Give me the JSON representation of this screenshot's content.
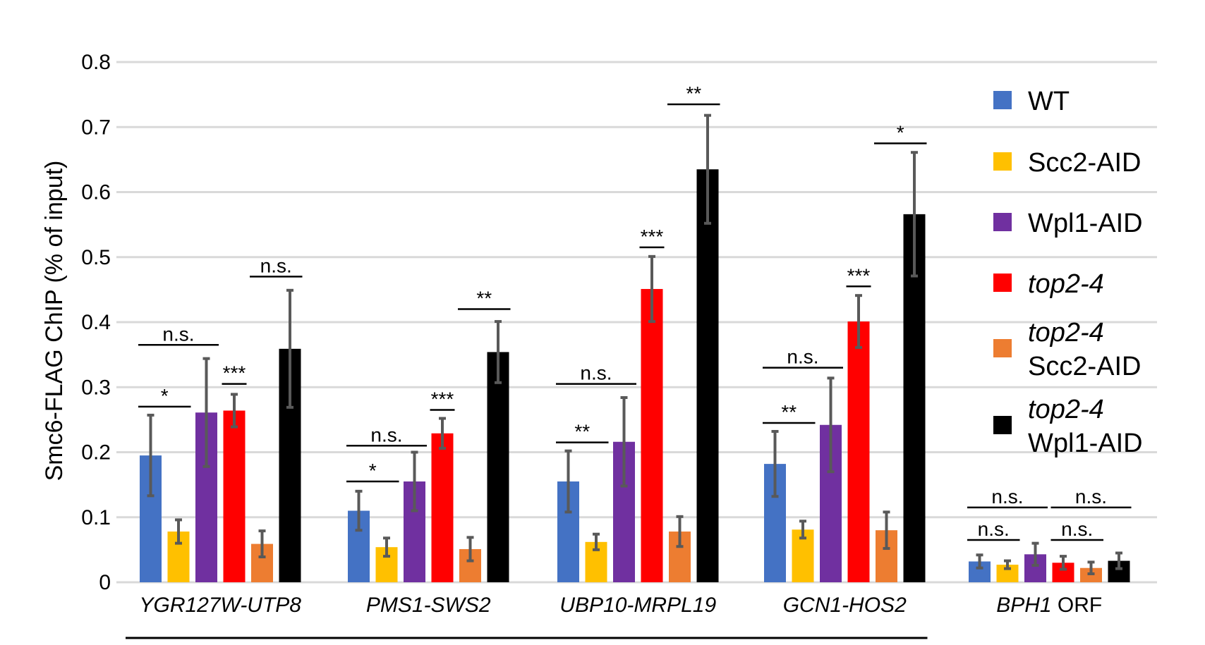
{
  "chart_data": {
    "type": "bar",
    "title": "",
    "xlabel": "",
    "ylabel": "Smc6-FLAG ChIP (% of input)",
    "ylim": [
      0,
      0.8
    ],
    "yticks": [
      "0",
      "0.1",
      "0.2",
      "0.3",
      "0.4",
      "0.5",
      "0.6",
      "0.7",
      "0.8"
    ],
    "grid": true,
    "legend_position": "right",
    "categories": [
      {
        "italic": "YGR127W-UTP8",
        "plain": ""
      },
      {
        "italic": "PMS1-SWS2",
        "plain": ""
      },
      {
        "italic": "UBP10-MRPL19",
        "plain": ""
      },
      {
        "italic": "GCN1-HOS2",
        "plain": ""
      },
      {
        "italic": "BPH1",
        "plain": " ORF"
      }
    ],
    "series": [
      {
        "name": "WT",
        "legend_lines": [
          {
            "text": "WT",
            "italic": false
          }
        ],
        "color": "#4472c4",
        "values": [
          0.195,
          0.11,
          0.155,
          0.182,
          0.032
        ],
        "errors": [
          0.062,
          0.03,
          0.047,
          0.05,
          0.01
        ]
      },
      {
        "name": "Scc2-AID",
        "legend_lines": [
          {
            "text": "Scc2-AID",
            "italic": false
          }
        ],
        "color": "#ffc000",
        "values": [
          0.078,
          0.054,
          0.062,
          0.081,
          0.027
        ],
        "errors": [
          0.018,
          0.014,
          0.012,
          0.013,
          0.006
        ]
      },
      {
        "name": "Wpl1-AID",
        "legend_lines": [
          {
            "text": "Wpl1-AID",
            "italic": false
          }
        ],
        "color": "#7030a0",
        "values": [
          0.261,
          0.155,
          0.216,
          0.242,
          0.043
        ],
        "errors": [
          0.083,
          0.045,
          0.068,
          0.072,
          0.017
        ]
      },
      {
        "name": "top2-4",
        "legend_lines": [
          {
            "text": "top2-4",
            "italic": true
          }
        ],
        "color": "#ff0000",
        "values": [
          0.264,
          0.229,
          0.451,
          0.401,
          0.03
        ],
        "errors": [
          0.025,
          0.023,
          0.05,
          0.04,
          0.01
        ]
      },
      {
        "name": "top2-4 Scc2-AID",
        "legend_lines": [
          {
            "text": "top2-4",
            "italic": true
          },
          {
            "text": "Scc2-AID",
            "italic": false
          }
        ],
        "color": "#ed7d31",
        "values": [
          0.059,
          0.051,
          0.078,
          0.08,
          0.022
        ],
        "errors": [
          0.02,
          0.018,
          0.023,
          0.028,
          0.009
        ]
      },
      {
        "name": "top2-4 Wpl1-AID",
        "legend_lines": [
          {
            "text": "top2-4",
            "italic": true
          },
          {
            "text": "Wpl1-AID",
            "italic": false
          }
        ],
        "color": "#000000",
        "values": [
          0.359,
          0.354,
          0.635,
          0.566,
          0.033
        ],
        "errors": [
          0.09,
          0.047,
          0.083,
          0.095,
          0.012
        ]
      }
    ],
    "significance": [
      {
        "category": 0,
        "from": 0,
        "to": 1,
        "label": "*",
        "y": 0.27
      },
      {
        "category": 0,
        "from": 0,
        "to": 2,
        "label": "n.s.",
        "y": 0.365
      },
      {
        "category": 0,
        "from": 3,
        "to": 3,
        "label": "***",
        "y": 0.305
      },
      {
        "category": 0,
        "from": 4,
        "to": 5,
        "label": "n.s.",
        "y": 0.47
      },
      {
        "category": 1,
        "from": 0,
        "to": 1,
        "label": "*",
        "y": 0.155
      },
      {
        "category": 1,
        "from": 0,
        "to": 2,
        "label": "n.s.",
        "y": 0.21
      },
      {
        "category": 1,
        "from": 3,
        "to": 3,
        "label": "***",
        "y": 0.265
      },
      {
        "category": 1,
        "from": 4,
        "to": 5,
        "label": "**",
        "y": 0.42
      },
      {
        "category": 2,
        "from": 0,
        "to": 1,
        "label": "**",
        "y": 0.215
      },
      {
        "category": 2,
        "from": 0,
        "to": 2,
        "label": "n.s.",
        "y": 0.305
      },
      {
        "category": 2,
        "from": 3,
        "to": 3,
        "label": "***",
        "y": 0.515
      },
      {
        "category": 2,
        "from": 4,
        "to": 5,
        "label": "**",
        "y": 0.735
      },
      {
        "category": 3,
        "from": 0,
        "to": 1,
        "label": "**",
        "y": 0.245
      },
      {
        "category": 3,
        "from": 0,
        "to": 2,
        "label": "n.s.",
        "y": 0.33
      },
      {
        "category": 3,
        "from": 3,
        "to": 3,
        "label": "***",
        "y": 0.455
      },
      {
        "category": 3,
        "from": 4,
        "to": 5,
        "label": "*",
        "y": 0.675
      },
      {
        "category": 4,
        "from": 0,
        "to": 1,
        "label": "n.s.",
        "y": 0.065
      },
      {
        "category": 4,
        "from": 0,
        "to": 2,
        "label": "n.s.",
        "y": 0.115
      },
      {
        "category": 4,
        "from": 3,
        "to": 4,
        "label": "n.s.",
        "y": 0.065
      },
      {
        "category": 4,
        "from": 3,
        "to": 5,
        "label": "n.s.",
        "y": 0.115
      }
    ],
    "group_bracket": {
      "from_category": 0,
      "to_category": 3,
      "label": ""
    }
  }
}
